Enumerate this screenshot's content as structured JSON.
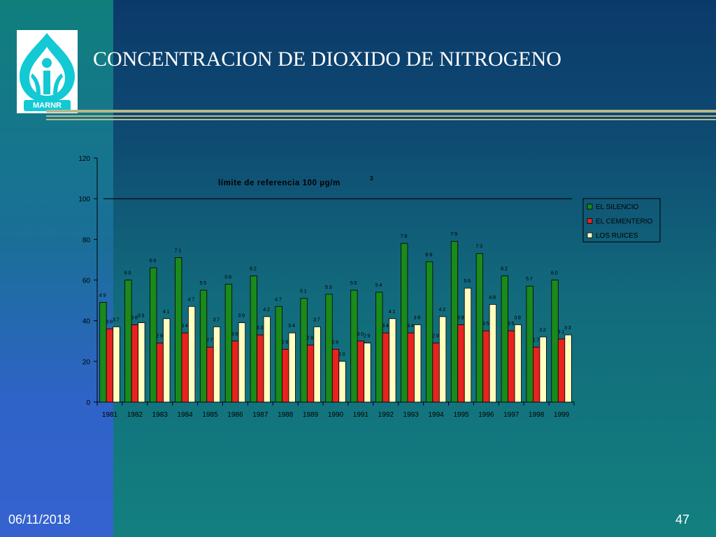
{
  "slide": {
    "title": "CONCENTRACION DE DIOXIDO DE NITROGENO",
    "logo_text": "MARNR",
    "date": "06/11/2018",
    "page_number": "47"
  },
  "colors": {
    "el_silencio": "#1a8a1a",
    "el_cementerio": "#e8231f",
    "los_ruices": "#ffffc0",
    "logo": "#12c9d4"
  },
  "chart_data": {
    "type": "bar",
    "title": "",
    "xlabel": "",
    "ylabel": "",
    "ylim": [
      0,
      120
    ],
    "yticks": [
      0,
      20,
      40,
      60,
      80,
      100,
      120
    ],
    "categories": [
      "1981",
      "1982",
      "1983",
      "1984",
      "1985",
      "1986",
      "1987",
      "1988",
      "1989",
      "1990",
      "1991",
      "1992",
      "1993",
      "1994",
      "1995",
      "1996",
      "1997",
      "1998",
      "1999"
    ],
    "series": [
      {
        "name": "EL SILENCIO",
        "color": "#1a8a1a",
        "values": [
          49,
          60,
          66,
          71,
          55,
          58,
          62,
          47,
          51,
          53,
          55,
          54,
          78,
          69,
          79,
          73,
          62,
          57,
          60
        ]
      },
      {
        "name": "EL CEMENTERIO",
        "color": "#e8231f",
        "values": [
          36,
          38,
          29,
          34,
          27,
          30,
          33,
          26,
          28,
          26,
          30,
          34,
          34,
          29,
          38,
          35,
          35,
          27,
          31
        ]
      },
      {
        "name": "LOS RUICES",
        "color": "#ffffc0",
        "values": [
          37,
          39,
          41,
          47,
          37,
          39,
          42,
          34,
          37,
          20,
          29,
          41,
          38,
          42,
          56,
          48,
          38,
          32,
          33
        ]
      }
    ],
    "reference_line": {
      "value": 100,
      "label": "límite de referencia 100 µg/m",
      "label_sup": "3"
    },
    "legend_position": "right",
    "grid": false
  }
}
